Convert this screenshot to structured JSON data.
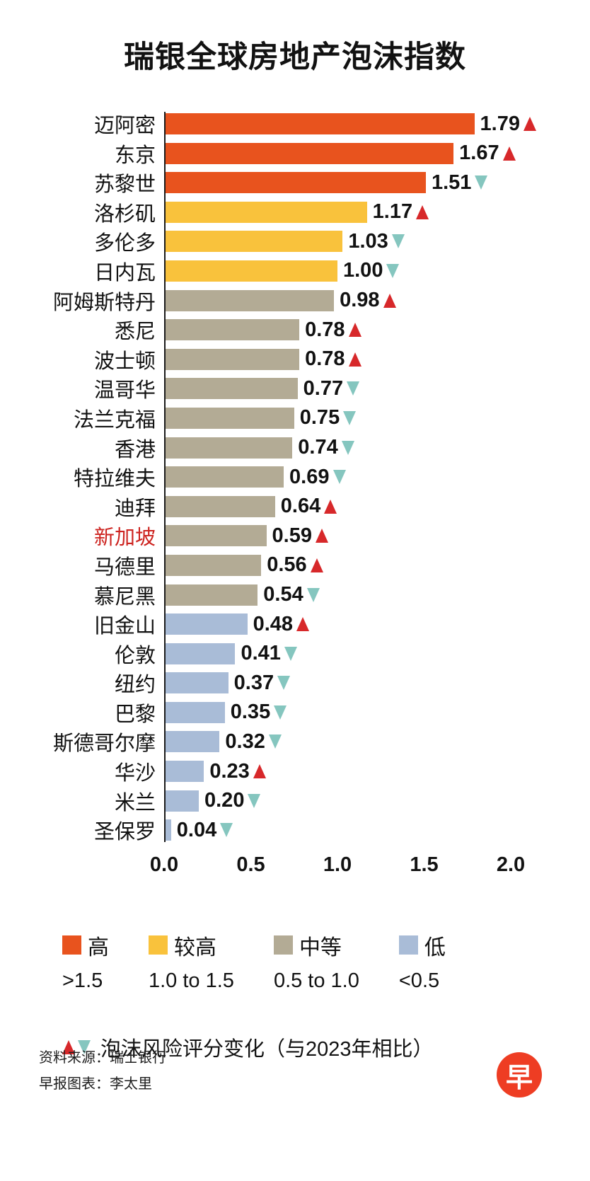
{
  "title": "瑞银全球房地产泡沫指数",
  "chart_data": {
    "type": "bar",
    "orientation": "horizontal",
    "xlim": [
      0,
      2.0
    ],
    "x_ticks": [
      "0.0",
      "0.5",
      "1.0",
      "1.5",
      "2.0"
    ],
    "rows": [
      {
        "city": "迈阿密",
        "value": 1.79,
        "change": "up",
        "tier": "high"
      },
      {
        "city": "东京",
        "value": 1.67,
        "change": "up",
        "tier": "high"
      },
      {
        "city": "苏黎世",
        "value": 1.51,
        "change": "down",
        "tier": "high"
      },
      {
        "city": "洛杉矶",
        "value": 1.17,
        "change": "up",
        "tier": "mid_high"
      },
      {
        "city": "多伦多",
        "value": 1.03,
        "change": "down",
        "tier": "mid_high"
      },
      {
        "city": "日内瓦",
        "value": 1.0,
        "change": "down",
        "tier": "mid_high"
      },
      {
        "city": "阿姆斯特丹",
        "value": 0.98,
        "change": "up",
        "tier": "medium"
      },
      {
        "city": "悉尼",
        "value": 0.78,
        "change": "up",
        "tier": "medium"
      },
      {
        "city": "波士顿",
        "value": 0.78,
        "change": "up",
        "tier": "medium"
      },
      {
        "city": "温哥华",
        "value": 0.77,
        "change": "down",
        "tier": "medium"
      },
      {
        "city": "法兰克福",
        "value": 0.75,
        "change": "down",
        "tier": "medium"
      },
      {
        "city": "香港",
        "value": 0.74,
        "change": "down",
        "tier": "medium"
      },
      {
        "city": "特拉维夫",
        "value": 0.69,
        "change": "down",
        "tier": "medium"
      },
      {
        "city": "迪拜",
        "value": 0.64,
        "change": "up",
        "tier": "medium"
      },
      {
        "city": "新加坡",
        "value": 0.59,
        "change": "up",
        "tier": "medium",
        "highlight": true
      },
      {
        "city": "马德里",
        "value": 0.56,
        "change": "up",
        "tier": "medium"
      },
      {
        "city": "慕尼黑",
        "value": 0.54,
        "change": "down",
        "tier": "medium"
      },
      {
        "city": "旧金山",
        "value": 0.48,
        "change": "up",
        "tier": "low"
      },
      {
        "city": "伦敦",
        "value": 0.41,
        "change": "down",
        "tier": "low"
      },
      {
        "city": "纽约",
        "value": 0.37,
        "change": "down",
        "tier": "low"
      },
      {
        "city": "巴黎",
        "value": 0.35,
        "change": "down",
        "tier": "low"
      },
      {
        "city": "斯德哥尔摩",
        "value": 0.32,
        "change": "down",
        "tier": "low"
      },
      {
        "city": "华沙",
        "value": 0.23,
        "change": "up",
        "tier": "low"
      },
      {
        "city": "米兰",
        "value": 0.2,
        "change": "down",
        "tier": "low"
      },
      {
        "city": "圣保罗",
        "value": 0.04,
        "change": "down",
        "tier": "low"
      }
    ]
  },
  "legend": [
    {
      "label": "高",
      "range": ">1.5",
      "tier": "high"
    },
    {
      "label": "较高",
      "range": "1.0 to 1.5",
      "tier": "mid_high"
    },
    {
      "label": "中等",
      "range": "0.5 to 1.0",
      "tier": "medium"
    },
    {
      "label": "低",
      "range": "<0.5",
      "tier": "low"
    }
  ],
  "note": "泡沫风险评分变化（与2023年相比）",
  "footer": {
    "source": "资料来源：瑞士银行",
    "credit": "早报图表：李太里",
    "logo_char": "早"
  },
  "colors": {
    "high": "#e8531e",
    "mid_high": "#f9c23c",
    "medium": "#b3ab95",
    "low": "#a9bcd7",
    "up": "#d7282a",
    "down": "#85c6bf",
    "highlight": "#cd2420",
    "logo": "#ee3d23"
  }
}
